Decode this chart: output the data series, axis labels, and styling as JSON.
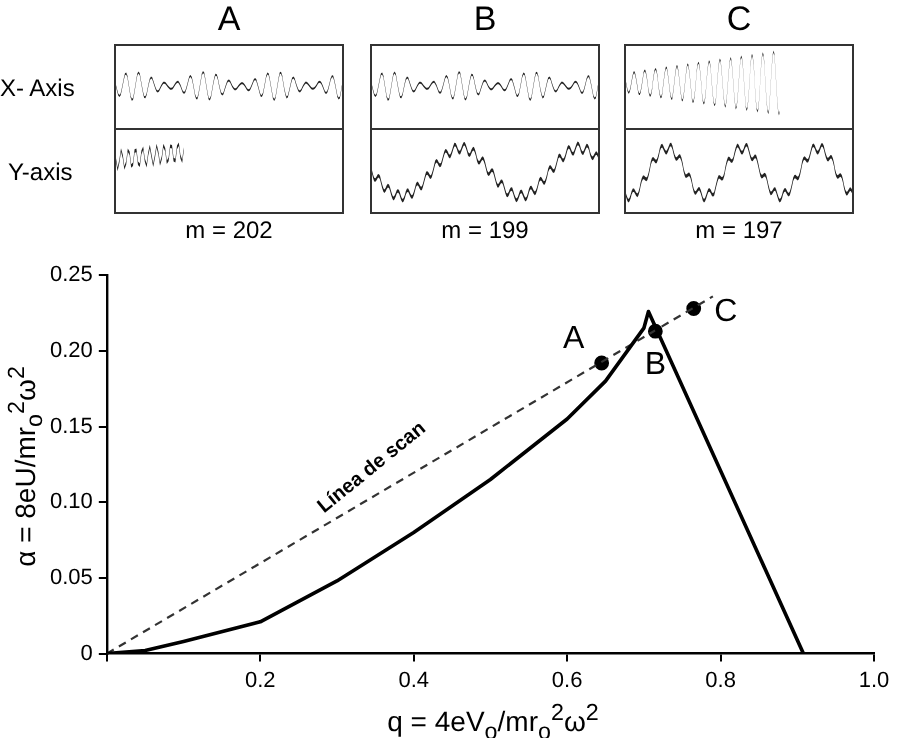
{
  "chart_data": {
    "type": "line",
    "xlabel": "q = 4eV$_{o}$/mr$_{o}$$^{2}$ω$^{2}$",
    "ylabel": "α = 8eU/mr$_{o}$$^{2}$ω$^{2}$",
    "series": [
      {
        "color": "#000000",
        "line_style": "solid",
        "marker": "none",
        "x": [
          0,
          0.05,
          0.1,
          0.2,
          0.3,
          0.4,
          0.5,
          0.6,
          0.65,
          0.7,
          0.706,
          0.908
        ],
        "values": [
          0,
          0.002,
          0.008,
          0.021,
          0.048,
          0.08,
          0.115,
          0.155,
          0.18,
          0.215,
          0.226,
          0
        ]
      },
      {
        "color": "#333333",
        "line_style": "dashed",
        "marker": "none",
        "x": [
          0,
          0.79
        ],
        "values": [
          0,
          0.236
        ]
      },
      {
        "type": "scatter",
        "color": "#000000",
        "marker": "circle",
        "x": [
          0.645,
          0.715,
          0.765
        ],
        "values": [
          0.192,
          0.213,
          0.228
        ]
      }
    ],
    "xlim": [
      0,
      1.0
    ],
    "ylim": [
      0,
      0.25
    ],
    "xticks": [
      {
        "value": 0,
        "label": null
      },
      0.2,
      0.4,
      0.6,
      0.8,
      {
        "value": 1.0,
        "label": "1.0"
      }
    ],
    "yticks": [
      0,
      0.05,
      {
        "value": 0.1,
        "label": "0.10"
      },
      0.15,
      {
        "value": 0.2,
        "label": "0.20"
      },
      0.25
    ],
    "grid": false,
    "legend": false,
    "annotations": [
      "A",
      "B",
      "C",
      "X- Axis",
      "Y-axis",
      "m = 202",
      "m = 199",
      "m = 197",
      "Línea de scan",
      {
        "text": "A",
        "x": 0.645,
        "y": 0.192
      },
      {
        "text": "B",
        "x": 0.715,
        "y": 0.213
      },
      {
        "text": "C",
        "x": 0.765,
        "y": 0.228
      }
    ]
  }
}
